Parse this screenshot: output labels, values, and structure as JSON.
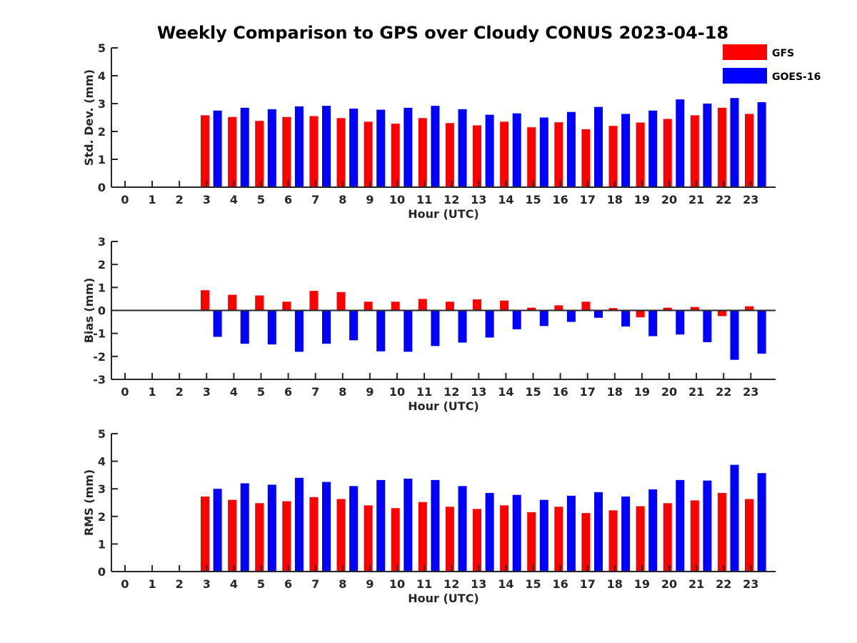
{
  "title": "Weekly Comparison to GPS over Cloudy CONUS 2023-04-18",
  "legend": {
    "placement": "top-right",
    "items": [
      {
        "label": "GFS",
        "color": "#ff0000"
      },
      {
        "label": "GOES-16",
        "color": "#0000ff"
      }
    ]
  },
  "chart_data": [
    {
      "type": "bar",
      "xlabel": "Hour (UTC)",
      "ylabel": "Std. Dev. (mm)",
      "ylim": [
        0,
        5
      ],
      "yticks": [
        0,
        1,
        2,
        3,
        4,
        5
      ],
      "categories": [
        "0",
        "1",
        "2",
        "3",
        "4",
        "5",
        "6",
        "7",
        "8",
        "9",
        "10",
        "11",
        "12",
        "13",
        "14",
        "15",
        "16",
        "17",
        "18",
        "19",
        "20",
        "21",
        "22",
        "23"
      ],
      "series": [
        {
          "name": "GFS",
          "color": "#ff0000",
          "values": [
            null,
            null,
            null,
            2.58,
            2.52,
            2.38,
            2.52,
            2.55,
            2.48,
            2.35,
            2.28,
            2.48,
            2.3,
            2.22,
            2.35,
            2.15,
            2.33,
            2.08,
            2.2,
            2.32,
            2.45,
            2.58,
            2.85,
            2.63
          ]
        },
        {
          "name": "GOES-16",
          "color": "#0000ff",
          "values": [
            null,
            null,
            null,
            2.75,
            2.85,
            2.8,
            2.9,
            2.92,
            2.82,
            2.78,
            2.85,
            2.92,
            2.8,
            2.6,
            2.65,
            2.5,
            2.7,
            2.88,
            2.63,
            2.75,
            3.15,
            3.0,
            3.2,
            3.05
          ]
        }
      ]
    },
    {
      "type": "bar",
      "xlabel": "Hour (UTC)",
      "ylabel": "Bias (mm)",
      "ylim": [
        -3,
        3
      ],
      "yticks": [
        -3,
        -2,
        -1,
        0,
        1,
        2,
        3
      ],
      "categories": [
        "0",
        "1",
        "2",
        "3",
        "4",
        "5",
        "6",
        "7",
        "8",
        "9",
        "10",
        "11",
        "12",
        "13",
        "14",
        "15",
        "16",
        "17",
        "18",
        "19",
        "20",
        "21",
        "22",
        "23"
      ],
      "series": [
        {
          "name": "GFS",
          "color": "#ff0000",
          "values": [
            null,
            null,
            null,
            0.88,
            0.68,
            0.65,
            0.38,
            0.85,
            0.8,
            0.38,
            0.38,
            0.5,
            0.38,
            0.48,
            0.43,
            0.12,
            0.22,
            0.38,
            0.1,
            -0.3,
            0.12,
            0.15,
            -0.25,
            0.18
          ]
        },
        {
          "name": "GOES-16",
          "color": "#0000ff",
          "values": [
            null,
            null,
            null,
            -1.15,
            -1.45,
            -1.48,
            -1.8,
            -1.45,
            -1.3,
            -1.78,
            -1.8,
            -1.55,
            -1.4,
            -1.18,
            -0.82,
            -0.68,
            -0.5,
            -0.32,
            -0.7,
            -1.12,
            -1.05,
            -1.38,
            -2.15,
            -1.88
          ]
        }
      ]
    },
    {
      "type": "bar",
      "xlabel": "Hour (UTC)",
      "ylabel": "RMS (mm)",
      "ylim": [
        0,
        5
      ],
      "yticks": [
        0,
        1,
        2,
        3,
        4,
        5
      ],
      "categories": [
        "0",
        "1",
        "2",
        "3",
        "4",
        "5",
        "6",
        "7",
        "8",
        "9",
        "10",
        "11",
        "12",
        "13",
        "14",
        "15",
        "16",
        "17",
        "18",
        "19",
        "20",
        "21",
        "22",
        "23"
      ],
      "series": [
        {
          "name": "GFS",
          "color": "#ff0000",
          "values": [
            null,
            null,
            null,
            2.72,
            2.6,
            2.48,
            2.55,
            2.7,
            2.63,
            2.4,
            2.3,
            2.52,
            2.35,
            2.27,
            2.4,
            2.15,
            2.35,
            2.12,
            2.22,
            2.37,
            2.48,
            2.58,
            2.85,
            2.63
          ]
        },
        {
          "name": "GOES-16",
          "color": "#0000ff",
          "values": [
            null,
            null,
            null,
            3.0,
            3.2,
            3.15,
            3.4,
            3.25,
            3.1,
            3.32,
            3.37,
            3.32,
            3.1,
            2.85,
            2.78,
            2.6,
            2.75,
            2.88,
            2.72,
            2.98,
            3.32,
            3.3,
            3.87,
            3.57
          ]
        }
      ]
    }
  ]
}
